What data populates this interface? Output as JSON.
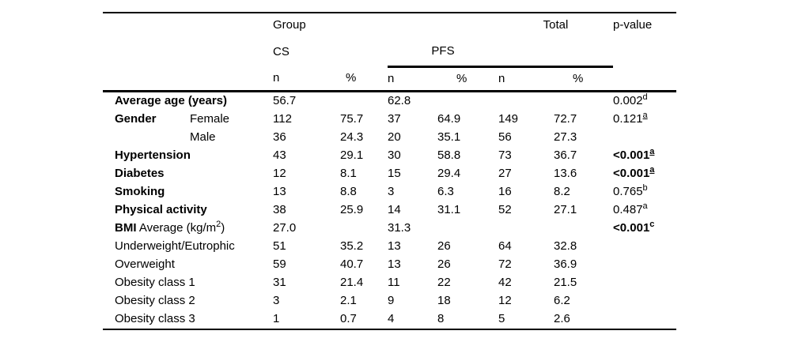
{
  "header": {
    "group_label": "Group",
    "total_label": "Total",
    "pvalue_label": "p-value",
    "cs_label": "CS",
    "pfs_label": "PFS",
    "col_n": "n",
    "col_pct": "%"
  },
  "rows": [
    {
      "bold_label": "Average age (years)",
      "label": "",
      "sublabel": "",
      "cells": [
        "56.7",
        "",
        "62.8",
        "",
        "",
        ""
      ],
      "p": "0.002",
      "p_sup": "d",
      "p_bold": false,
      "p_sup_u": false
    },
    {
      "bold_label": "Gender",
      "label": "",
      "sublabel": "Female",
      "cells": [
        "112",
        "75.7",
        "37",
        "64.9",
        "149",
        "72.7"
      ],
      "p": "0.121",
      "p_sup": "a",
      "p_bold": false,
      "p_sup_u": true
    },
    {
      "bold_label": "",
      "label": "",
      "sublabel": "Male",
      "cells": [
        "36",
        "24.3",
        "20",
        "35.1",
        "56",
        "27.3"
      ],
      "p": "",
      "p_sup": "",
      "p_bold": false,
      "p_sup_u": false
    },
    {
      "bold_label": "Hypertension",
      "label": "",
      "sublabel": "",
      "cells": [
        "43",
        "29.1",
        "30",
        "58.8",
        "73",
        "36.7"
      ],
      "p": "<0.001",
      "p_sup": "a",
      "p_bold": true,
      "p_sup_u": true
    },
    {
      "bold_label": "Diabetes",
      "label": "",
      "sublabel": "",
      "cells": [
        "12",
        "8.1",
        "15",
        "29.4",
        "27",
        "13.6"
      ],
      "p": "<0.001",
      "p_sup": "a",
      "p_bold": true,
      "p_sup_u": true
    },
    {
      "bold_label": "Smoking",
      "label": "",
      "sublabel": "",
      "cells": [
        "13",
        "8.8",
        "3",
        "6.3",
        "16",
        "8.2"
      ],
      "p": "0.765",
      "p_sup": "b",
      "p_bold": false,
      "p_sup_u": false
    },
    {
      "bold_label": "Physical activity",
      "label": "",
      "sublabel": "",
      "cells": [
        "38",
        "25.9",
        "14",
        "31.1",
        "52",
        "27.1"
      ],
      "p": "0.487",
      "p_sup": "a",
      "p_bold": false,
      "p_sup_u": false
    },
    {
      "bold_label": "BMI",
      "label": " Average (kg/m",
      "label_sup": "2",
      "label_end": ")",
      "sublabel": "",
      "cells": [
        "27.0",
        "",
        "31.3",
        "",
        "",
        ""
      ],
      "p": "<0.001",
      "p_sup": "c",
      "p_bold": true,
      "p_sup_u": false
    },
    {
      "bold_label": "",
      "label": "Underweight/Eutrophic",
      "sublabel": "",
      "cells": [
        "51",
        "35.2",
        "13",
        "26",
        "64",
        "32.8"
      ],
      "p": "",
      "p_sup": "",
      "p_bold": false,
      "p_sup_u": false
    },
    {
      "bold_label": "",
      "label": "Overweight",
      "sublabel": "",
      "cells": [
        "59",
        "40.7",
        "13",
        "26",
        "72",
        "36.9"
      ],
      "p": "",
      "p_sup": "",
      "p_bold": false,
      "p_sup_u": false
    },
    {
      "bold_label": "",
      "label": "Obesity class 1",
      "sublabel": "",
      "cells": [
        "31",
        "21.4",
        "11",
        "22",
        "42",
        "21.5"
      ],
      "p": "",
      "p_sup": "",
      "p_bold": false,
      "p_sup_u": false
    },
    {
      "bold_label": "",
      "label": "Obesity class 2",
      "sublabel": "",
      "cells": [
        "3",
        "2.1",
        "9",
        "18",
        "12",
        "6.2"
      ],
      "p": "",
      "p_sup": "",
      "p_bold": false,
      "p_sup_u": false
    },
    {
      "bold_label": "",
      "label": "Obesity class 3",
      "sublabel": "",
      "cells": [
        "1",
        "0.7",
        "4",
        "8",
        "5",
        "2.6"
      ],
      "p": "",
      "p_sup": "",
      "p_bold": false,
      "p_sup_u": false
    }
  ]
}
